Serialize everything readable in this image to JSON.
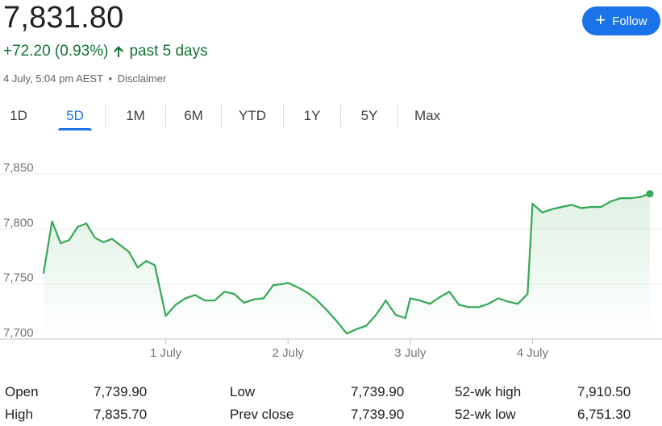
{
  "quote": {
    "price": "7,831.80",
    "change": "+72.20 (0.93%)",
    "period": "past 5 days",
    "timestamp": "4 July, 5:04 pm AEST",
    "separator": "•",
    "disclaimer": "Disclaimer",
    "up_color": "#137333",
    "arrow_icon": "arrow-up-icon"
  },
  "follow_button": {
    "label": "Follow",
    "icon": "plus-icon",
    "color": "#1a73e8"
  },
  "tabs": [
    {
      "label": "1D",
      "active": false
    },
    {
      "label": "5D",
      "active": true
    },
    {
      "label": "1M",
      "active": false
    },
    {
      "label": "6M",
      "active": false
    },
    {
      "label": "YTD",
      "active": false
    },
    {
      "label": "1Y",
      "active": false
    },
    {
      "label": "5Y",
      "active": false
    },
    {
      "label": "Max",
      "active": false
    }
  ],
  "chart_data": {
    "type": "line",
    "ylim": [
      7700,
      7850
    ],
    "yticks": [
      "7,850",
      "7,800",
      "7,750",
      "7,700"
    ],
    "ytick_values": [
      7850,
      7800,
      7750,
      7700
    ],
    "xticks": [
      "1 July",
      "2 July",
      "3 July",
      "4 July"
    ],
    "xtick_values": [
      1.0,
      2.0,
      3.0,
      4.0
    ],
    "xlim": [
      0.0,
      5.0
    ],
    "line_color": "#34a853",
    "grid": true,
    "series": [
      {
        "x": [
          0.0,
          0.07,
          0.14,
          0.21,
          0.28,
          0.35,
          0.42,
          0.49,
          0.56,
          0.63,
          0.7,
          0.77,
          0.84,
          0.91,
          1.0,
          1.08,
          1.16,
          1.24,
          1.32,
          1.4,
          1.48,
          1.56,
          1.64,
          1.72,
          1.8,
          1.88,
          1.96,
          2.0,
          2.08,
          2.16,
          2.24,
          2.32,
          2.4,
          2.48,
          2.56,
          2.64,
          2.72,
          2.8,
          2.88,
          2.96,
          3.0,
          3.08,
          3.16,
          3.24,
          3.32,
          3.4,
          3.48,
          3.56,
          3.64,
          3.72,
          3.8,
          3.88,
          3.96,
          4.0,
          4.08,
          4.16,
          4.24,
          4.32,
          4.4,
          4.48,
          4.56,
          4.64,
          4.72,
          4.8,
          4.88,
          4.96
        ],
        "y": [
          7760,
          7807,
          7787,
          7790,
          7802,
          7805,
          7792,
          7788,
          7791,
          7785,
          7779,
          7765,
          7771,
          7767,
          7721,
          7731,
          7737,
          7740,
          7735,
          7735,
          7743,
          7741,
          7733,
          7736,
          7737,
          7749,
          7750,
          7751,
          7747,
          7742,
          7735,
          7726,
          7716,
          7705,
          7709,
          7712,
          7722,
          7735,
          7722,
          7719,
          7737,
          7735,
          7732,
          7738,
          7743,
          7731,
          7729,
          7729,
          7732,
          7737,
          7734,
          7732,
          7741,
          7823,
          7815,
          7818,
          7820,
          7822,
          7819,
          7820,
          7820,
          7825,
          7828,
          7828,
          7829,
          7832
        ]
      }
    ]
  },
  "stats": {
    "open_label": "Open",
    "open_value": "7,739.90",
    "high_label": "High",
    "high_value": "7,835.70",
    "low_label": "Low",
    "low_value": "7,739.90",
    "prev_close_label": "Prev close",
    "prev_close_value": "7,739.90",
    "wk52_high_label": "52-wk high",
    "wk52_high_value": "7,910.50",
    "wk52_low_label": "52-wk low",
    "wk52_low_value": "6,751.30"
  }
}
